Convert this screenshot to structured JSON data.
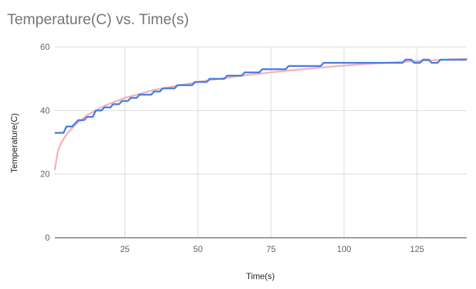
{
  "chart_data": {
    "type": "line",
    "title": "Temperature(C) vs. Time(s)",
    "xlabel": "Time(s)",
    "ylabel": "Temperature(C)",
    "xlim": [
      1,
      142
    ],
    "ylim": [
      0,
      60
    ],
    "x_ticks": [
      25,
      50,
      75,
      100,
      125
    ],
    "y_ticks": [
      0,
      20,
      40,
      60
    ],
    "grid": true,
    "colors": {
      "measured": "#4a7fe0",
      "trend": "#f4b4b8",
      "grid": "#d9d9d9",
      "axis": "#333333"
    },
    "series": [
      {
        "style": "step",
        "points": [
          [
            1,
            33
          ],
          [
            3,
            33
          ],
          [
            4,
            33
          ],
          [
            5,
            35
          ],
          [
            7,
            35
          ],
          [
            8,
            36
          ],
          [
            9,
            37
          ],
          [
            11,
            37
          ],
          [
            12,
            38
          ],
          [
            14,
            38
          ],
          [
            15,
            40
          ],
          [
            17,
            40
          ],
          [
            18,
            41
          ],
          [
            20,
            41
          ],
          [
            21,
            42
          ],
          [
            23,
            42
          ],
          [
            24,
            43
          ],
          [
            26,
            43
          ],
          [
            27,
            44
          ],
          [
            29,
            44
          ],
          [
            30,
            45
          ],
          [
            34,
            45
          ],
          [
            35,
            46
          ],
          [
            37,
            46
          ],
          [
            38,
            47
          ],
          [
            42,
            47
          ],
          [
            43,
            48
          ],
          [
            48,
            48
          ],
          [
            49,
            49
          ],
          [
            53,
            49
          ],
          [
            54,
            50
          ],
          [
            59,
            50
          ],
          [
            60,
            51
          ],
          [
            65,
            51
          ],
          [
            66,
            52
          ],
          [
            71,
            52
          ],
          [
            72,
            53
          ],
          [
            80,
            53
          ],
          [
            81,
            54
          ],
          [
            92,
            54
          ],
          [
            93,
            55
          ],
          [
            120,
            55
          ],
          [
            121,
            56
          ],
          [
            123,
            56
          ],
          [
            124,
            55
          ],
          [
            126,
            55
          ],
          [
            127,
            56
          ],
          [
            129,
            56
          ],
          [
            130,
            55
          ],
          [
            132,
            55
          ],
          [
            133,
            56
          ],
          [
            142,
            56
          ]
        ]
      },
      {
        "style": "trendline",
        "points": [
          [
            1,
            21.5
          ],
          [
            2,
            27
          ],
          [
            3,
            29.5
          ],
          [
            5,
            32.5
          ],
          [
            8,
            35.5
          ],
          [
            12,
            38.5
          ],
          [
            18,
            41.5
          ],
          [
            25,
            44
          ],
          [
            35,
            46.5
          ],
          [
            50,
            49
          ],
          [
            65,
            51
          ],
          [
            80,
            52.5
          ],
          [
            95,
            53.8
          ],
          [
            110,
            54.8
          ],
          [
            125,
            55.6
          ],
          [
            142,
            56.3
          ]
        ]
      }
    ]
  }
}
